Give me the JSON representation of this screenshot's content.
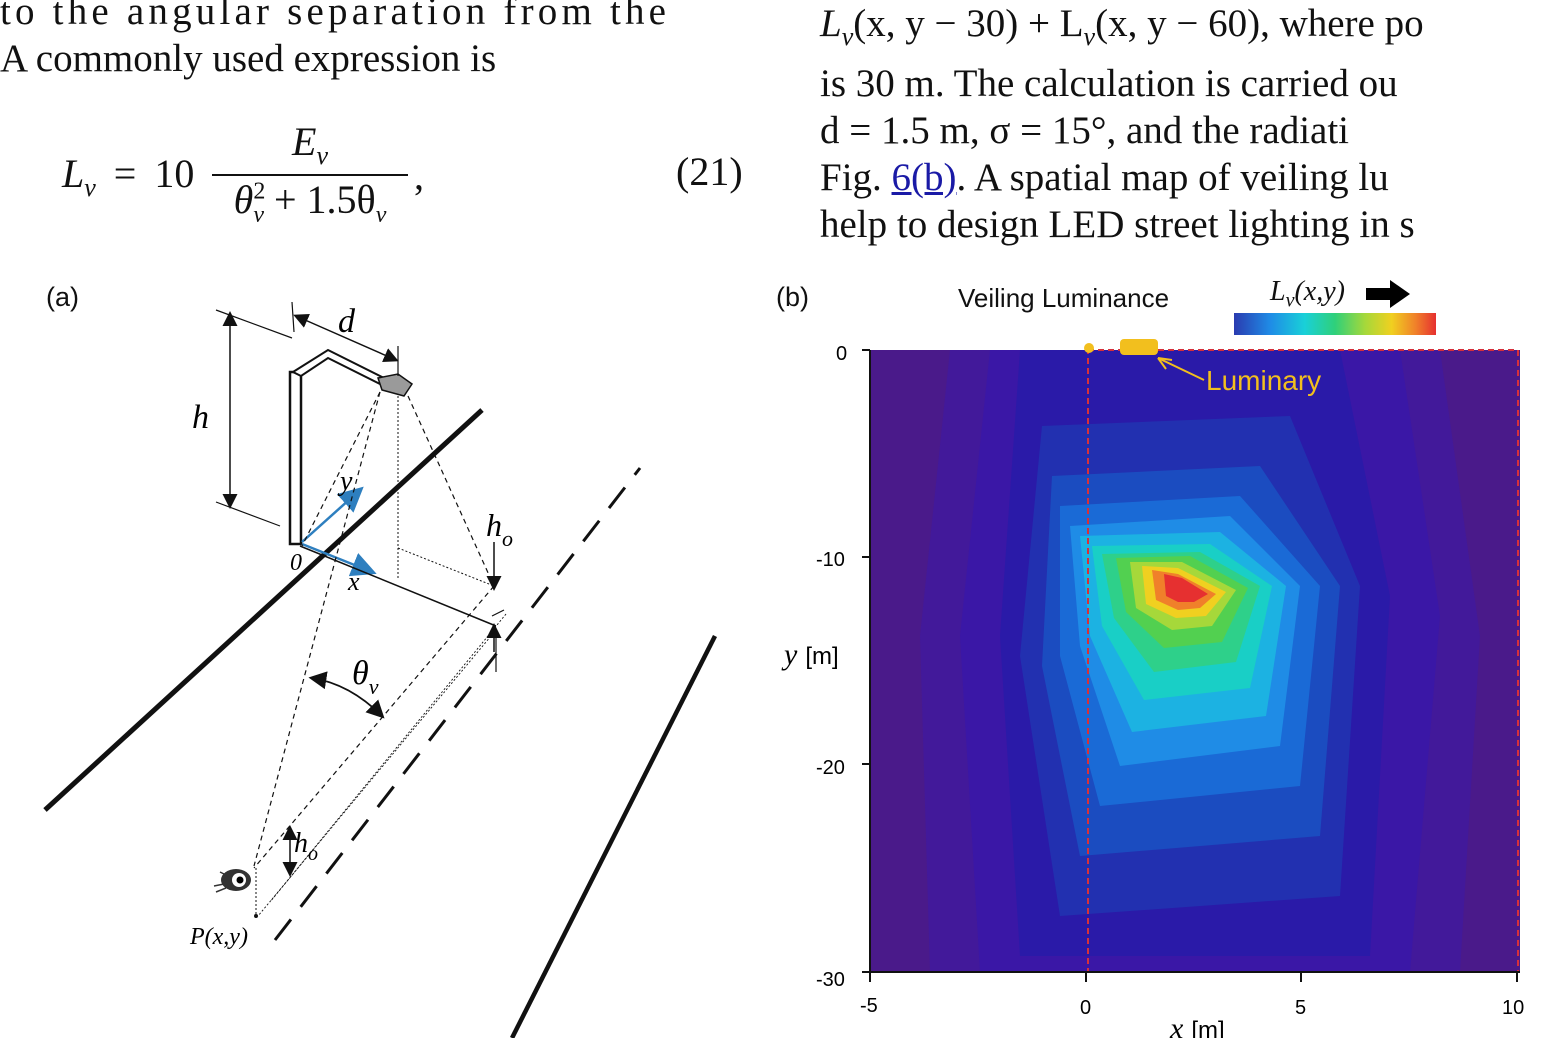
{
  "left_text": {
    "line1": "to the angular separation from the",
    "line2": "A commonly used expression is"
  },
  "equation": {
    "lhs": "L",
    "lhs_sub": "v",
    "equals": "=",
    "coef": "10",
    "numerator": "E",
    "numerator_sub": "v",
    "denominator": "θ",
    "den_sup": "2",
    "den_sub": "v",
    "den_plus": "+ 1.5θ",
    "den_sub2": "v",
    "comma": ",",
    "number": "(21)"
  },
  "right_text": {
    "line1a": "L",
    "line1b": "v",
    "line1c": "(x, y − 30) + L",
    "line1d": "v",
    "line1e": "(x, y − 60),  where  po",
    "line2": "is 30 m. The calculation is carried ou",
    "line3": "d = 1.5 m,  σ = 15°,  and  the  radiati",
    "line4a": "Fig. ",
    "line4_link": "6(b)",
    "line4b": ". A spatial map of veiling lu",
    "line5": "help to design LED street lighting in s"
  },
  "figure_a": {
    "panel_label": "(a)",
    "label_d": "d",
    "label_h": "h",
    "label_y": "y",
    "label_x": "x",
    "label_origin": "0",
    "label_ho_top": "h",
    "label_ho_top_sub": "o",
    "label_theta": "θ",
    "label_theta_sub": "v",
    "label_ho_bottom": "h",
    "label_ho_bottom_sub": "o",
    "label_point": "P(x,y)",
    "axis_color": "#2e7fbf"
  },
  "figure_b": {
    "panel_label": "(b)",
    "title": "Veiling  Luminance",
    "colorbar_label": "L",
    "colorbar_label_sub": "v",
    "colorbar_label_args": "(x,y)",
    "luminary_label": "Luminary",
    "ylabel": "y",
    "ylabel_unit": "[m]",
    "xlabel": "x",
    "xlabel_unit": "[m]",
    "colors": {
      "background": "#4a1a8a",
      "luminary": "#f2bf1e",
      "outline": "#d6303b"
    }
  },
  "chart_data": {
    "type": "heatmap",
    "title": "Veiling  Luminance",
    "xlabel": "x [m]",
    "ylabel": "y [m]",
    "xlim": [
      -5,
      10
    ],
    "ylim": [
      -30,
      0
    ],
    "x_ticks": [
      "-5",
      "0",
      "5",
      "10"
    ],
    "y_ticks": [
      "0",
      "-10",
      "-20",
      "-30"
    ],
    "peak": {
      "x": 2.5,
      "y": -11.5
    },
    "luminary": {
      "x": 1.2,
      "y": 0
    },
    "region": {
      "x": [
        0,
        10
      ],
      "y": [
        -30,
        0
      ]
    }
  }
}
